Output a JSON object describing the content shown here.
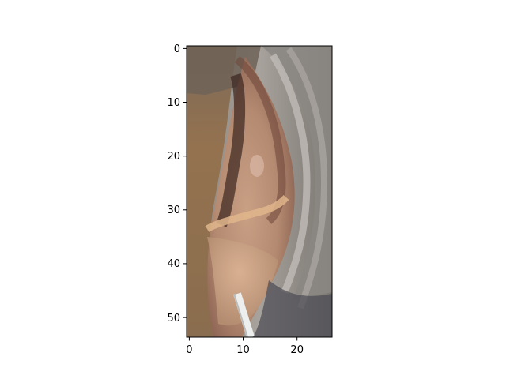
{
  "chart_data": {
    "type": "heatmap",
    "image_shape": [
      54,
      27
    ],
    "x_ticks": [
      "0",
      "10",
      "20"
    ],
    "y_ticks": [
      "0",
      "10",
      "20",
      "30",
      "40",
      "50"
    ],
    "xlim": [
      -0.5,
      26.5
    ],
    "ylim": [
      53.5,
      -0.5
    ],
    "grid": false,
    "colors": {
      "background": "#ffffff",
      "axes": "#000000",
      "skin_light": "#d2a888",
      "skin_mid": "#a47463",
      "shadow_dark": "#3a2520",
      "hair_gray": "#8d8a86",
      "hair_light": "#b3aea9",
      "brown_left": "#8e7152",
      "wire_white": "#ecefee"
    }
  }
}
